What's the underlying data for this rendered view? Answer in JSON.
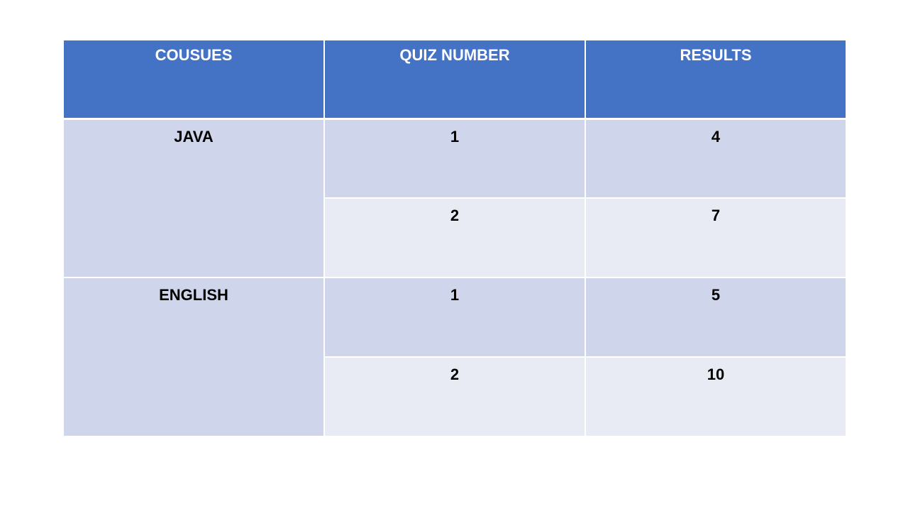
{
  "table": {
    "columns": [
      "COUSUES",
      "QUIZ NUMBER",
      "RESULTS"
    ],
    "groups": [
      {
        "course": "JAVA",
        "quizzes": [
          {
            "quiz": "1",
            "result": "4"
          },
          {
            "quiz": "2",
            "result": "7"
          }
        ]
      },
      {
        "course": "ENGLISH",
        "quizzes": [
          {
            "quiz": "1",
            "result": "5"
          },
          {
            "quiz": "2",
            "result": "10"
          }
        ]
      }
    ],
    "colors": {
      "header_bg": "#4472C4",
      "band_dark": "#CFD5EA",
      "band_light": "#E9EBF4",
      "grid": "#FFFFFF",
      "header_text": "#FFFFFF",
      "body_text": "#000000"
    }
  },
  "chart_data": {
    "type": "table",
    "title": "",
    "columns": [
      "COUSUES",
      "QUIZ NUMBER",
      "RESULTS"
    ],
    "rows": [
      [
        "JAVA",
        1,
        4
      ],
      [
        "JAVA",
        2,
        7
      ],
      [
        "ENGLISH",
        1,
        5
      ],
      [
        "ENGLISH",
        2,
        10
      ]
    ],
    "layout_hints": {
      "first_column_merged_per_course": true,
      "banded_rows": true,
      "header_fill": "#4472C4",
      "grid_lines": "white"
    }
  }
}
